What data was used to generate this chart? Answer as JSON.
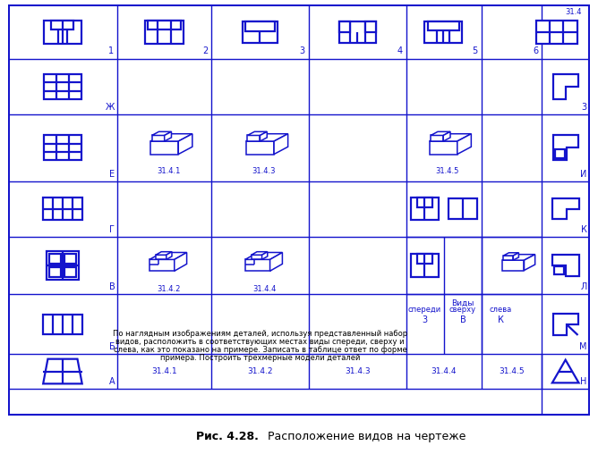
{
  "blue": "#1414CC",
  "black": "#000000",
  "white": "#FFFFFF",
  "lw_thick": 1.8,
  "lw_thin": 1.1,
  "fig_w": 6.68,
  "fig_h": 5.08,
  "caption_bold": "Рис. 4.28.",
  "caption_rest": " Расположение видов на чертеже",
  "instr1": "По наглядным изображениям деталей, используя представленный набор",
  "instr2": "видов, расположить в соответствующих местах виды спереди, сверху и",
  "instr3": "слева, как это показано на примере. Записать в таблице ответ по форме",
  "instr4": "примера. Построить трехмерные модели деталей",
  "vidy": "Виды",
  "spereди": "спереди",
  "sverhu": "сверху",
  "sleva": "слева",
  "row_labels": [
    "Ж",
    "Е",
    "Г",
    "В",
    "Б",
    "А"
  ],
  "right_labels": [
    "3",
    "И",
    "К",
    "Л",
    "М",
    "Н"
  ],
  "top_nums": [
    "1",
    "2",
    "3",
    "4",
    "5",
    "6"
  ],
  "iso_labels": [
    "31.4.1",
    "31.4.2",
    "31.4.3",
    "31.4.4",
    "31.4.5"
  ],
  "bottom_labels": [
    "31.4.1",
    "31.4.2",
    "31.4.3",
    "31.4.4",
    "31.4.5"
  ],
  "ex_vidy_num": "3",
  "ex_vidy_v": "В",
  "ex_vidy_k": "К",
  "label_314": "31.4"
}
